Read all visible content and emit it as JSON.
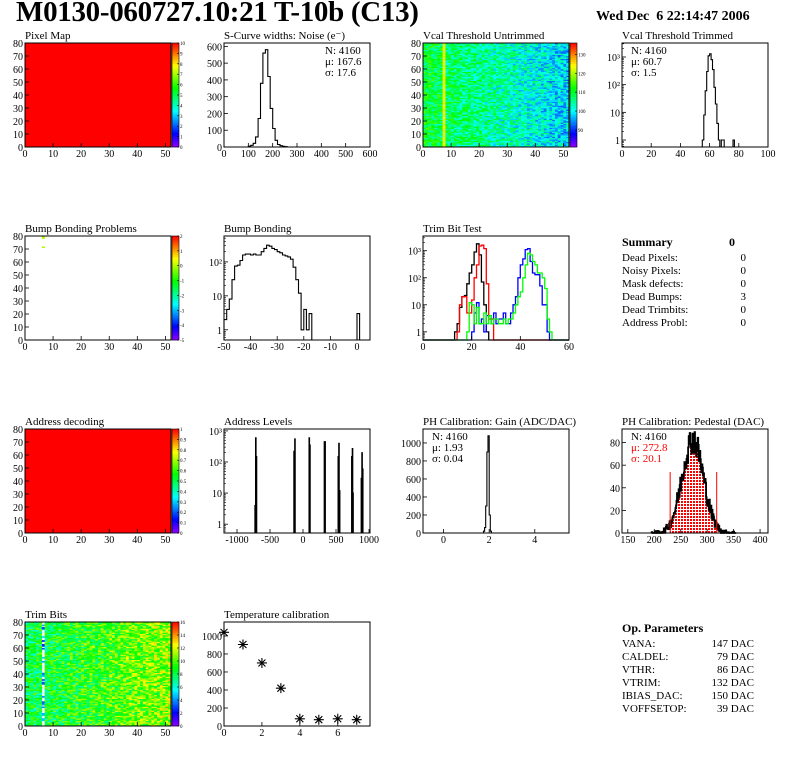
{
  "header": {
    "title": "M0130-060727.10:21 T-10b (C13)",
    "date": "Wed Dec  6 22:14:47 2006"
  },
  "colors": {
    "red": "#ff0000",
    "blue": "#0000ff",
    "green": "#00ff00",
    "black": "#000000"
  },
  "chart_data": [
    {
      "type": "heatmap",
      "title": "Pixel Map",
      "xlim": [
        0,
        52
      ],
      "ylim": [
        0,
        80
      ],
      "zlim": [
        0,
        10
      ],
      "xticks": [
        0,
        10,
        20,
        30,
        40,
        50
      ],
      "yticks": [
        0,
        10,
        20,
        30,
        40,
        50,
        60,
        70,
        80
      ],
      "palette_labels": [
        "0",
        "1",
        "2",
        "3",
        "4",
        "5",
        "6",
        "7",
        "8",
        "9",
        "10"
      ],
      "model": {
        "kind": "uniform",
        "value": 10
      }
    },
    {
      "type": "bar",
      "title": "S-Curve widths: Noise (e⁻)",
      "xlim": [
        0,
        600
      ],
      "ylim": [
        0,
        620
      ],
      "log": false,
      "xticks": [
        0,
        100,
        200,
        300,
        400,
        500,
        600
      ],
      "yticks": [
        0,
        100,
        200,
        300,
        400,
        500,
        600
      ],
      "stats": [
        "N: 4160",
        "μ: 167.6",
        "σ: 17.6"
      ],
      "stats_pos": "top-right",
      "series": [
        {
          "name": "noise",
          "color": "#000000",
          "x0": 100,
          "bin": 10,
          "values": [
            5,
            10,
            22,
            60,
            170,
            380,
            560,
            580,
            420,
            230,
            110,
            40,
            15,
            8,
            4,
            2
          ]
        }
      ]
    },
    {
      "type": "heatmap",
      "title": "Vcal Threshold Untrimmed",
      "xlim": [
        0,
        52
      ],
      "ylim": [
        0,
        80
      ],
      "zlim": [
        81,
        136
      ],
      "xticks": [
        0,
        10,
        20,
        30,
        40,
        50
      ],
      "yticks": [
        0,
        10,
        20,
        30,
        40,
        50,
        60,
        70,
        80
      ],
      "palette_labels": [
        "90",
        "100",
        "110",
        "120",
        "130"
      ],
      "palette_values": [
        90,
        100,
        110,
        120,
        130
      ],
      "model": {
        "kind": "gradient",
        "left": 110,
        "right": 98,
        "noise": 7,
        "hot_column": 7,
        "hot_value": 124
      }
    },
    {
      "type": "bar",
      "title": "Vcal Threshold Trimmed",
      "xlim": [
        0,
        100
      ],
      "ylim": [
        0.56,
        3200
      ],
      "log": true,
      "xticks": [
        0,
        20,
        40,
        60,
        80,
        100
      ],
      "yticks": [
        1,
        10,
        100,
        1000
      ],
      "yticklabels": [
        "1",
        "10",
        "10²",
        "10³"
      ],
      "stats": [
        "N: 4160",
        "μ: 60.7",
        "σ:  1.5"
      ],
      "stats_pos": "top-left",
      "series": [
        {
          "name": "trimmed",
          "color": "#000000",
          "x0": 55,
          "bin": 1,
          "values": [
            1,
            8,
            60,
            300,
            1100,
            1300,
            800,
            350,
            80,
            20,
            4,
            1,
            0,
            1,
            1,
            0,
            0,
            0,
            0,
            0,
            0,
            1
          ]
        }
      ]
    },
    {
      "type": "heatmap",
      "title": "Bump Bonding Problems",
      "xlim": [
        0,
        52
      ],
      "ylim": [
        0,
        80
      ],
      "zlim": [
        -5,
        2
      ],
      "xticks": [
        0,
        10,
        20,
        30,
        40,
        50
      ],
      "yticks": [
        0,
        10,
        20,
        30,
        40,
        50,
        60,
        70,
        80
      ],
      "palette_labels": [
        "-5",
        "-4",
        "-3",
        "-2",
        "-1",
        "0",
        "1",
        "2"
      ],
      "model": {
        "kind": "points",
        "points": [
          [
            6,
            78,
            0
          ],
          [
            6,
            79,
            0
          ],
          [
            6,
            71,
            0
          ]
        ]
      }
    },
    {
      "type": "bar",
      "title": "Bump Bonding",
      "xlim": [
        -50,
        4.9
      ],
      "ylim": [
        0.5,
        580
      ],
      "log": true,
      "xticks": [
        -50,
        -40,
        -30,
        -20,
        -10,
        0
      ],
      "yticks": [
        1,
        10,
        100
      ],
      "yticklabels": [
        "1",
        "10",
        "10²"
      ],
      "series": [
        {
          "name": "bump",
          "color": "#000000",
          "x0": -50,
          "bin": 1,
          "values": [
            2,
            4,
            8,
            30,
            75,
            80,
            110,
            160,
            170,
            170,
            160,
            170,
            160,
            160,
            200,
            250,
            310,
            290,
            250,
            230,
            200,
            185,
            160,
            150,
            140,
            120,
            70,
            30,
            12,
            1,
            4,
            1,
            3,
            0,
            0,
            0,
            0,
            0,
            0,
            0,
            0,
            0,
            0,
            0,
            0,
            0,
            0,
            0,
            0,
            0,
            3
          ]
        }
      ]
    },
    {
      "type": "line",
      "title": "Trim Bit Test",
      "xlim": [
        0,
        60
      ],
      "ylim": [
        0.5,
        3500
      ],
      "log": true,
      "xticks": [
        0,
        20,
        40,
        60
      ],
      "yticks": [
        1,
        10,
        100,
        1000
      ],
      "yticklabels": [
        "1",
        "10",
        "10²",
        "10³"
      ],
      "series": [
        {
          "name": "trim0",
          "color": "#000000",
          "x0": 12,
          "bin": 1,
          "values": [
            0,
            1,
            2,
            8,
            20,
            22,
            60,
            150,
            300,
            900,
            1800,
            700,
            70,
            10,
            1,
            0
          ]
        },
        {
          "name": "trim1",
          "color": "#ff0000",
          "x0": 13,
          "bin": 1,
          "values": [
            0,
            1,
            10,
            20,
            20,
            5,
            5,
            15,
            100,
            300,
            1500,
            1600,
            1200,
            60,
            3,
            3,
            0
          ]
        },
        {
          "name": "trim2",
          "color": "#0000ff",
          "x0": 20,
          "bin": 1,
          "values": [
            1,
            5,
            12,
            2,
            3,
            1,
            4,
            4,
            2,
            5,
            2,
            3,
            3,
            5,
            2,
            2,
            5,
            10,
            20,
            100,
            300,
            500,
            1100,
            1200,
            400,
            150,
            130,
            130,
            50,
            10,
            10,
            1,
            0
          ]
        },
        {
          "name": "trim3",
          "color": "#00ff00",
          "x0": 18,
          "bin": 1,
          "values": [
            1,
            12,
            10,
            2,
            8,
            2,
            2,
            5,
            2,
            4,
            2,
            3,
            3,
            2,
            2,
            3,
            2,
            3,
            3,
            5,
            10,
            20,
            30,
            100,
            300,
            800,
            700,
            400,
            300,
            150,
            150,
            100,
            40,
            3,
            1,
            0
          ]
        }
      ]
    },
    {
      "type": "table",
      "title": "Summary",
      "total": "0",
      "rows": [
        {
          "label": "Dead Pixels:",
          "value": "0"
        },
        {
          "label": "Noisy Pixels:",
          "value": "0"
        },
        {
          "label": "Mask defects:",
          "value": "0"
        },
        {
          "label": "Dead Bumps:",
          "value": "3"
        },
        {
          "label": "Dead Trimbits:",
          "value": "0"
        },
        {
          "label": "Address Probl:",
          "value": "0"
        }
      ]
    },
    {
      "type": "heatmap",
      "title": "Address decoding",
      "xlim": [
        0,
        52
      ],
      "ylim": [
        0,
        80
      ],
      "zlim": [
        0,
        1
      ],
      "xticks": [
        0,
        10,
        20,
        30,
        40,
        50
      ],
      "yticks": [
        0,
        10,
        20,
        30,
        40,
        50,
        60,
        70,
        80
      ],
      "palette_labels": [
        "0",
        "0.1",
        "0.2",
        "0.3",
        "0.4",
        "0.5",
        "0.6",
        "0.7",
        "0.8",
        "0.9",
        "1"
      ],
      "model": {
        "kind": "uniform",
        "value": 1
      }
    },
    {
      "type": "bar",
      "title": "Address Levels",
      "xlim": [
        -1197,
        1015
      ],
      "ylim": [
        0.52,
        1150
      ],
      "log": true,
      "xticks": [
        -1000,
        -500,
        0,
        500,
        1000
      ],
      "yticks": [
        1,
        10,
        100,
        1000
      ],
      "yticklabels": [
        "1",
        "10",
        "10²",
        "10³"
      ],
      "series": [
        {
          "name": "levels",
          "color": "#000000",
          "spikes": [
            [
              -725,
              4
            ],
            [
              -715,
              600
            ],
            [
              -705,
              150
            ],
            [
              -135,
              220
            ],
            [
              -128,
              2
            ],
            [
              -122,
              550
            ],
            [
              95,
              600
            ],
            [
              105,
              350
            ],
            [
              325,
              450
            ],
            [
              335,
              450
            ],
            [
              535,
              150
            ],
            [
              545,
              400
            ],
            [
              555,
              12
            ],
            [
              740,
              150
            ],
            [
              750,
              270
            ],
            [
              758,
              10
            ],
            [
              885,
              30
            ],
            [
              895,
              200
            ],
            [
              905,
              60
            ]
          ]
        }
      ]
    },
    {
      "type": "bar",
      "title": "PH Calibration: Gain (ADC/DAC)",
      "xlim": [
        -0.9,
        5.5
      ],
      "ylim": [
        0,
        1155
      ],
      "log": false,
      "xticks": [
        0,
        2,
        4
      ],
      "yticks": [
        0,
        200,
        400,
        600,
        800,
        1000
      ],
      "stats": [
        "N: 4160",
        "μ: 1.93",
        "σ: 0.04"
      ],
      "stats_pos": "top-left",
      "series": [
        {
          "name": "gain",
          "color": "#000000",
          "x0": 1.7,
          "bin": 0.05,
          "values": [
            0,
            20,
            60,
            300,
            900,
            1080,
            200,
            20,
            0
          ]
        }
      ]
    },
    {
      "type": "bar",
      "title": "PH Calibration: Pedestal (DAC)",
      "xlim": [
        139,
        415
      ],
      "ylim": [
        0,
        92
      ],
      "log": false,
      "xticks": [
        150,
        200,
        250,
        300,
        350,
        400
      ],
      "yticks": [
        0,
        20,
        40,
        60,
        80
      ],
      "stats": [
        "N: 4160",
        "μ: 272.8",
        "σ: 20.1"
      ],
      "stats_colors": [
        "#000000",
        "#ff0000",
        "#ff0000"
      ],
      "stats_pos": "top-left",
      "gauss": {
        "n": 4160,
        "mean": 272.8,
        "sigma": 20.1,
        "bin": 1,
        "from": 195,
        "to": 355
      },
      "fit_range": [
        230,
        318
      ]
    },
    {
      "type": "heatmap",
      "title": "Trim Bits",
      "xlim": [
        0,
        52
      ],
      "ylim": [
        0,
        80
      ],
      "zlim": [
        0,
        16
      ],
      "xticks": [
        0,
        10,
        20,
        30,
        40,
        50
      ],
      "yticks": [
        0,
        10,
        20,
        30,
        40,
        50,
        60,
        70,
        80
      ],
      "palette_labels": [
        "0",
        "2",
        "4",
        "6",
        "8",
        "10",
        "12",
        "14",
        "16"
      ],
      "model": {
        "kind": "gradient",
        "left": 8,
        "right": 11,
        "noise": 2.5,
        "dead_column": 6
      }
    },
    {
      "type": "scatter",
      "title": "Temperature calibration",
      "xlim": [
        0,
        7.7
      ],
      "ylim": [
        0,
        1155
      ],
      "xticks": [
        0,
        2,
        4,
        6
      ],
      "yticks": [
        0,
        200,
        400,
        600,
        800,
        1000
      ],
      "x": [
        0,
        1,
        2,
        3,
        4,
        5,
        6,
        7
      ],
      "y": [
        1040,
        905,
        700,
        420,
        80,
        70,
        80,
        70
      ]
    },
    {
      "type": "table",
      "title": "Op. Parameters",
      "rows": [
        {
          "label": "VANA:",
          "value": "147 DAC"
        },
        {
          "label": "CALDEL:",
          "value": "79 DAC"
        },
        {
          "label": "VTHR:",
          "value": "86 DAC"
        },
        {
          "label": "VTRIM:",
          "value": "132 DAC"
        },
        {
          "label": "IBIAS_DAC:",
          "value": "150 DAC"
        },
        {
          "label": "VOFFSETOP:",
          "value": "39 DAC"
        }
      ]
    }
  ]
}
